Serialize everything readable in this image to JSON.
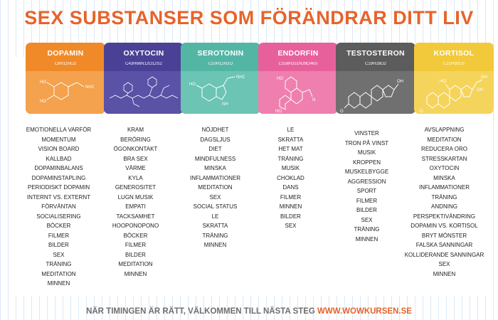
{
  "title": "SEX SUBSTANSER SOM FÖRÄNDRAR DITT LIV",
  "footer": {
    "text": "NÄR TIMINGEN ÄR RÄTT, VÄLKOMMEN TILL NÄSTA STEG",
    "url": "WWW.WOWKURSEN.SE"
  },
  "colors": {
    "title": "#e7632a",
    "dopamin": "#f08a28",
    "oxytocin": "#4a4196",
    "serotonin": "#53b6a5",
    "endorfin": "#e8609b",
    "testosteron": "#5c5c5c",
    "kortisol": "#f2c93a"
  },
  "substances": [
    {
      "name": "DOPAMIN",
      "formula": "C8H11NO2",
      "structure_icon": "dopamine-molecule-icon",
      "items": [
        "EMOTIONELLA VARFÖR",
        "MOMENTUM",
        "VISION BOARD",
        "KALLBAD",
        "DOPAMINBALANS",
        "DOPAMINSTAPLING",
        "PERIODISKT DOPAMIN",
        "INTERNT VS. EXTERNT",
        "FÖRVÄNTAN",
        "SOCIALISERING",
        "BÖCKER",
        "FILMER",
        "BILDER",
        "SEX",
        "TRÄNING",
        "MEDITATION",
        "MINNEN"
      ]
    },
    {
      "name": "OXYTOCIN",
      "formula": "C43H66N12O12S2",
      "structure_icon": "oxytocin-molecule-icon",
      "items": [
        "KRAM",
        "BERÖRING",
        "ÖGONKONTAKT",
        "BRA SEX",
        "VÄRME",
        "KYLA",
        "GENEROSITET",
        "LUGN MUSIK",
        "EMPATI",
        "TACKSAMHET",
        "HOOPONOPONO",
        "BÖCKER",
        "FILMER",
        "BILDER",
        "MEDITATION",
        "MINNEN"
      ]
    },
    {
      "name": "SEROTONIN",
      "formula": "C10H12N2O",
      "structure_icon": "serotonin-molecule-icon",
      "items": [
        "NÖJDHET",
        "DAGSLJUS",
        "DIET",
        "MINDFULNESS",
        "MINSKA",
        "INFLAMMATIONER",
        "MEDITATION",
        "SEX",
        "SOCIAL STATUS",
        "LE",
        "SKRATTA",
        "TRÄNING",
        "MINNEN"
      ]
    },
    {
      "name": "ENDORFIN",
      "formula": "C158H251N39O46S",
      "structure_icon": "endorphin-molecule-icon",
      "items": [
        "LE",
        "SKRATTA",
        "HET MAT",
        "TRÄNING",
        "MUSIK",
        "CHOKLAD",
        "DANS",
        "FILMER",
        "MINNEN",
        "BILDER",
        "SEX"
      ]
    },
    {
      "name": "TESTOSTERON",
      "formula": "C19H28O2",
      "structure_icon": "testosterone-molecule-icon",
      "items": [
        "VINSTER",
        "TRON PÅ VINST",
        "MUSIK",
        "KROPPEN",
        "MUSKELBYGGE",
        "AGGRESSION",
        "SPORT",
        "FILMER",
        "BILDER",
        "SEX",
        "TRÄNING",
        "MINNEN"
      ]
    },
    {
      "name": "KORTISOL",
      "formula": "C21H30O5",
      "structure_icon": "cortisol-molecule-icon",
      "items": [
        "AVSLAPPNING",
        "MEDITATION",
        "REDUCERA ORO",
        "STRESSKARTAN",
        "OXYTOCIN",
        "MINSKA",
        "INFLAMMATIONER",
        "TRÄNING",
        "ANDNING",
        "PERSPEKTIVÄNDRING",
        "DOPAMIN VS. KORTISOL",
        "BRYT MÖNSTER",
        "FALSKA SANNINGAR",
        "KOLLIDERANDE SANNINGAR",
        "SEX",
        "MINNEN"
      ]
    }
  ]
}
